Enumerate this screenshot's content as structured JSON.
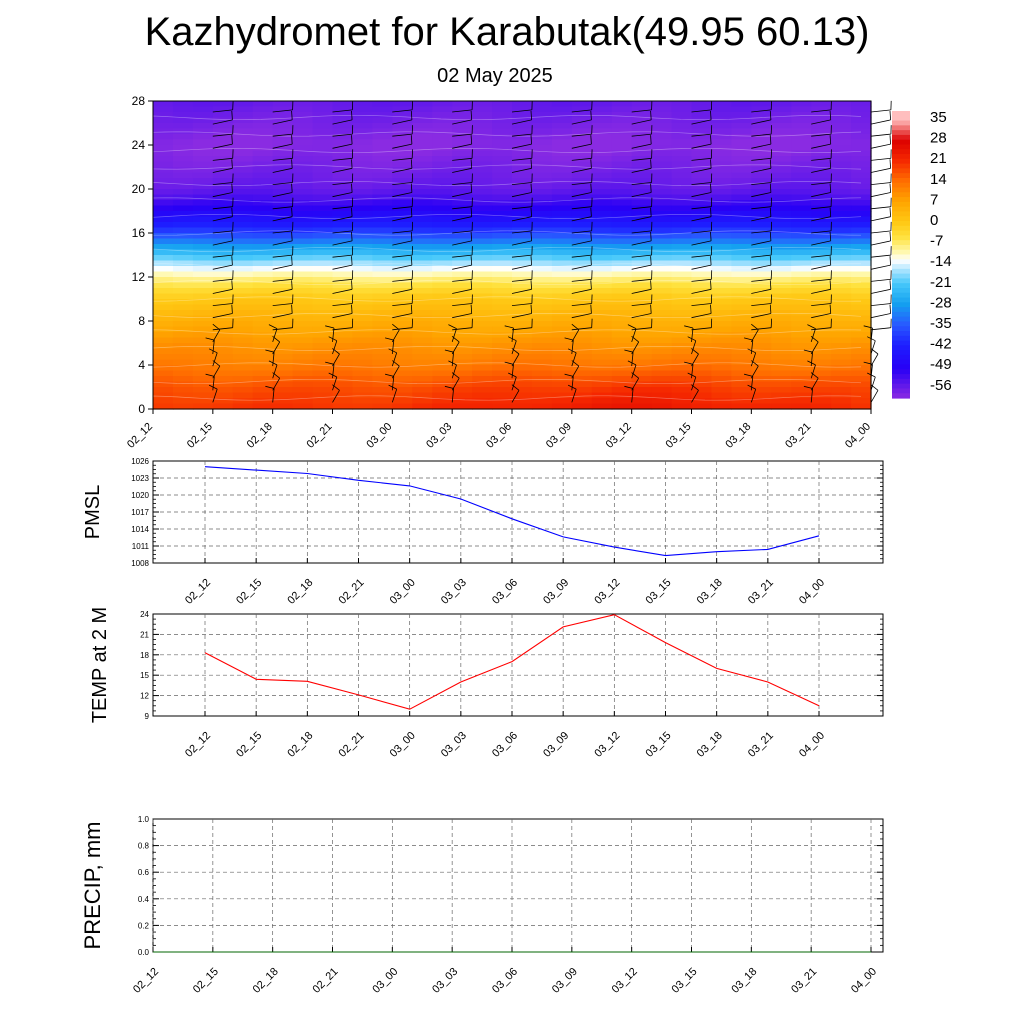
{
  "header": {
    "title": "Kazhydromet for Karabutak(49.95 60.13)",
    "subtitle": "02 May 2025"
  },
  "chart_data": [
    {
      "type": "heatmap",
      "title": "",
      "x_categories": [
        "02_12",
        "02_15",
        "02_18",
        "02_21",
        "03_00",
        "03_03",
        "03_06",
        "03_09",
        "03_12",
        "03_15",
        "03_18",
        "03_21",
        "04_00"
      ],
      "y_ticks": [
        0,
        4,
        8,
        12,
        16,
        20,
        24,
        28
      ],
      "ylim": [
        0,
        28
      ],
      "colorbar_labels": [
        35,
        28,
        21,
        14,
        7,
        0,
        -7,
        -14,
        -21,
        -28,
        -35,
        -42,
        -49,
        -56
      ],
      "colorbar_range": [
        -60,
        38
      ],
      "overlay": "wind barbs",
      "value_profile": {
        "levels": [
          0,
          2,
          4,
          6,
          8,
          10,
          11,
          12,
          13,
          14,
          15,
          16,
          17,
          18,
          19,
          20,
          22,
          24,
          26,
          28
        ],
        "values": [
          20,
          17,
          12,
          9,
          5,
          0,
          -4,
          -9,
          -15,
          -22,
          -30,
          -38,
          -44,
          -49,
          -53,
          -56,
          -58,
          -60,
          -58,
          -56
        ]
      },
      "warm_anomaly_near_surface": {
        "center_category": "03_12",
        "extra": 4
      }
    },
    {
      "type": "line",
      "ylabel": "PMSL",
      "x": [
        "02_12",
        "02_15",
        "02_18",
        "02_21",
        "03_00",
        "03_03",
        "03_06",
        "03_09",
        "03_12",
        "03_15",
        "03_18",
        "03_21",
        "04_00"
      ],
      "y_ticks": [
        1008,
        1011,
        1014,
        1017,
        1020,
        1023,
        1026
      ],
      "ylim": [
        1008,
        1026
      ],
      "series": [
        {
          "values": [
            1025.0,
            1024.4,
            1023.8,
            1022.6,
            1021.6,
            1019.3,
            1015.8,
            1012.6,
            1010.8,
            1009.3,
            1010.0,
            1010.4,
            1012.8
          ],
          "color": "#0000ff"
        }
      ],
      "grid": true
    },
    {
      "type": "line",
      "ylabel": "TEMP at 2 M",
      "x": [
        "02_12",
        "02_15",
        "02_18",
        "02_21",
        "03_00",
        "03_03",
        "03_06",
        "03_09",
        "03_12",
        "03_15",
        "03_18",
        "03_21",
        "04_00"
      ],
      "y_ticks": [
        9,
        12,
        15,
        18,
        21,
        24
      ],
      "ylim": [
        9,
        24
      ],
      "series": [
        {
          "values": [
            18.3,
            14.4,
            14.1,
            12.1,
            10.0,
            14.0,
            17.0,
            22.1,
            23.9,
            19.8,
            16.0,
            14.0,
            10.5
          ],
          "color": "#ff0000"
        }
      ],
      "grid": true
    },
    {
      "type": "line",
      "ylabel": "PRECIP, mm",
      "x": [
        "02_12",
        "02_15",
        "02_18",
        "02_21",
        "03_00",
        "03_03",
        "03_06",
        "03_09",
        "03_12",
        "03_15",
        "03_18",
        "03_21",
        "04_00"
      ],
      "y_ticks": [
        "0.0",
        "0.2",
        "0.4",
        "0.6",
        "0.8",
        "1.0"
      ],
      "ylim": [
        0,
        1
      ],
      "series": [
        {
          "values": [
            0,
            0,
            0,
            0,
            0,
            0,
            0,
            0,
            0,
            0,
            0,
            0,
            0
          ],
          "color": "#006400"
        }
      ],
      "grid": true
    }
  ]
}
